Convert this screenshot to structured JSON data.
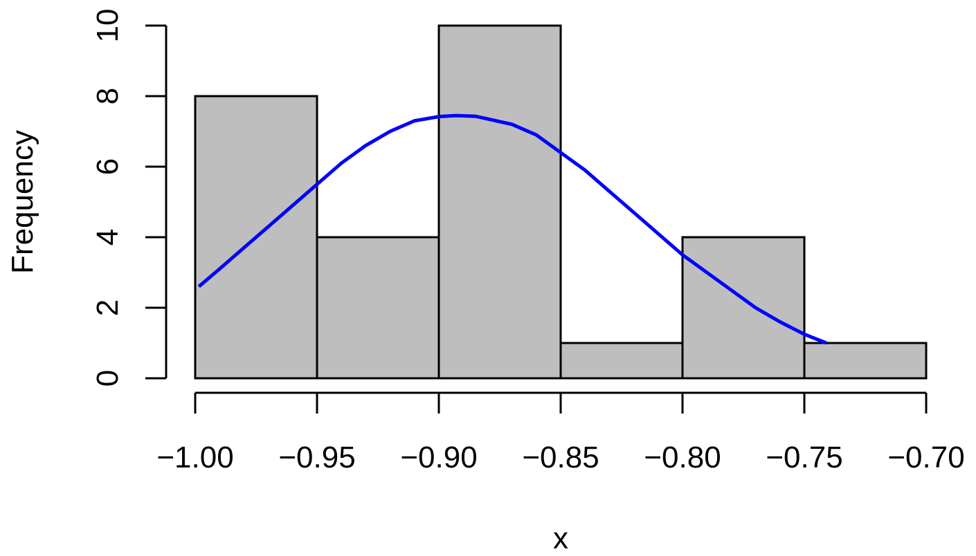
{
  "chart_data": {
    "type": "bar",
    "xlabel": "x",
    "ylabel": "Frequency",
    "bins": [
      {
        "from": -1.0,
        "to": -0.95,
        "count": 8
      },
      {
        "from": -0.95,
        "to": -0.9,
        "count": 4
      },
      {
        "from": -0.9,
        "to": -0.85,
        "count": 10
      },
      {
        "from": -0.85,
        "to": -0.8,
        "count": 1
      },
      {
        "from": -0.8,
        "to": -0.75,
        "count": 4
      },
      {
        "from": -0.75,
        "to": -0.7,
        "count": 1
      }
    ],
    "xlim": [
      -1.0,
      -0.7
    ],
    "ylim": [
      0,
      10
    ],
    "x_ticks": [
      -1.0,
      -0.95,
      -0.9,
      -0.85,
      -0.8,
      -0.75,
      -0.7
    ],
    "x_tick_labels": [
      "−1.00",
      "−0.95",
      "−0.90",
      "−0.85",
      "−0.80",
      "−0.75",
      "−0.70"
    ],
    "y_ticks": [
      0,
      2,
      4,
      6,
      8,
      10
    ],
    "y_tick_labels": [
      "0",
      "2",
      "4",
      "6",
      "8",
      "10"
    ],
    "grid": false,
    "overlay_curve": {
      "type": "line",
      "color": "#0000ff",
      "x": [
        -0.9985,
        -0.99,
        -0.98,
        -0.97,
        -0.96,
        -0.95,
        -0.94,
        -0.93,
        -0.92,
        -0.91,
        -0.9,
        -0.893,
        -0.885,
        -0.87,
        -0.86,
        -0.85,
        -0.84,
        -0.83,
        -0.82,
        -0.81,
        -0.8,
        -0.79,
        -0.78,
        -0.77,
        -0.76,
        -0.75,
        -0.741
      ],
      "y": [
        2.6,
        3.1,
        3.7,
        4.3,
        4.9,
        5.5,
        6.1,
        6.6,
        7.0,
        7.3,
        7.42,
        7.45,
        7.43,
        7.2,
        6.9,
        6.4,
        5.9,
        5.3,
        4.7,
        4.1,
        3.5,
        3.0,
        2.5,
        2.0,
        1.6,
        1.25,
        1.0
      ]
    },
    "bar_fill": "#bebebe",
    "bar_stroke": "#000000"
  }
}
